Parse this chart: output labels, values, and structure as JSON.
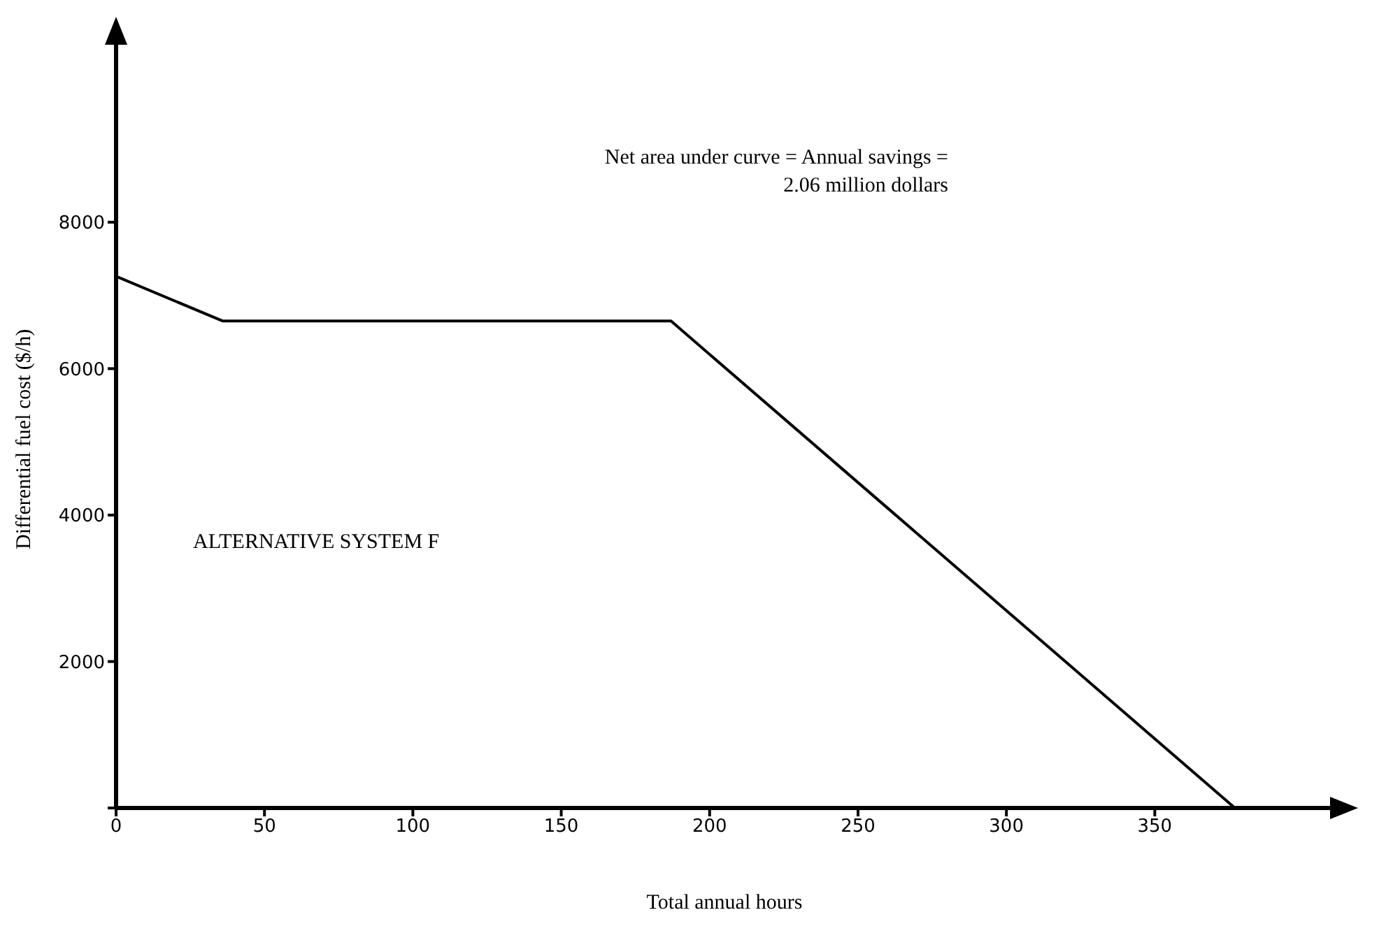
{
  "chart_data": {
    "type": "line",
    "xlabel": "Total annual hours",
    "ylabel": "Differential fuel cost ($/h)",
    "x": [
      0,
      36,
      187,
      377
    ],
    "series": [
      {
        "color": "#000000",
        "values": [
          7260,
          6650,
          6650,
          0
        ]
      }
    ],
    "xlim": [
      0,
      410
    ],
    "xticks": [
      0,
      50,
      100,
      150,
      200,
      250,
      300,
      350
    ],
    "ylim": [
      0,
      10500
    ],
    "yticks": [
      {
        "value": 0,
        "label": null
      },
      2000,
      4000,
      6000,
      8000
    ],
    "grid": false,
    "legend": false,
    "marker": "none",
    "line_style": "solid",
    "annotations": [
      "Net area under curve = Annual savings = 2.06 million dollars",
      "ALTERNATIVE SYSTEM F"
    ]
  }
}
